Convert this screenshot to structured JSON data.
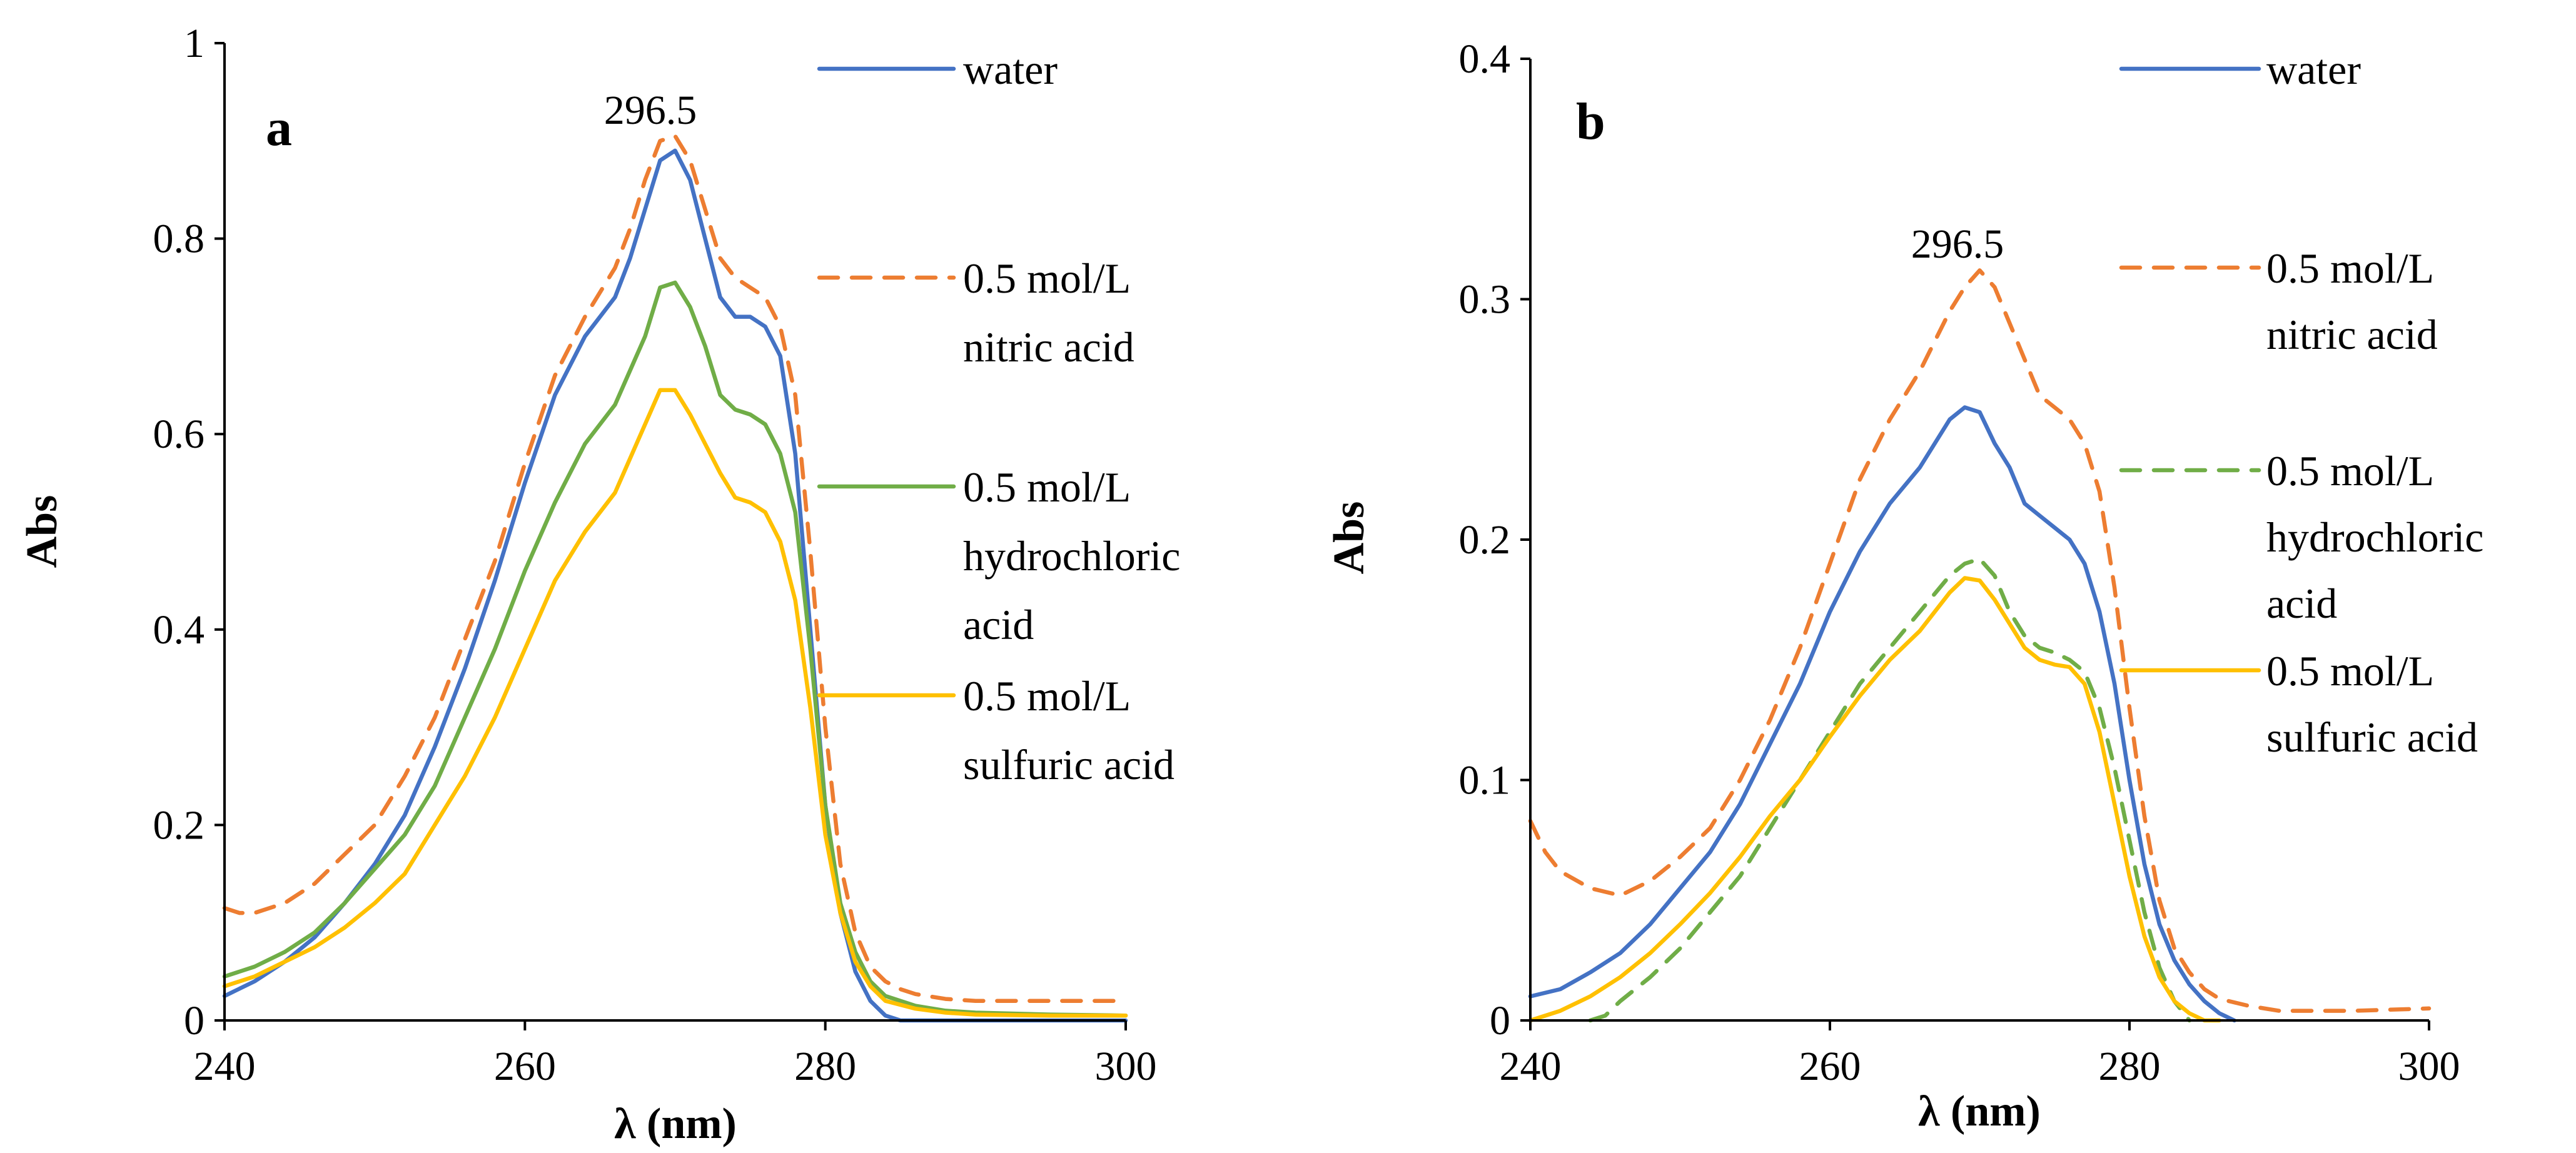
{
  "chart_data": [
    {
      "type": "line",
      "panel_label": "a",
      "title": "",
      "xlabel": "λ (nm)",
      "ylabel": "Abs",
      "xlim": [
        240,
        300
      ],
      "ylim": [
        0,
        1
      ],
      "x_ticks": [
        240,
        260,
        280,
        300
      ],
      "x_tick_labels": [
        "240",
        "260",
        "280",
        "300"
      ],
      "y_ticks": [
        0,
        0.2,
        0.4,
        0.6,
        0.8,
        1
      ],
      "y_tick_labels": [
        "0",
        "0.2",
        "0.4",
        "0.6",
        "0.8",
        "1"
      ],
      "grid": false,
      "legend_position": "right",
      "annotation": {
        "text": "296.5",
        "x": 269.5,
        "y": 0.905
      },
      "series": [
        {
          "name": "water",
          "legend": [
            "water"
          ],
          "color": "#4472C4",
          "dash": "solid",
          "x": [
            240,
            242,
            244,
            246,
            248,
            250,
            252,
            254,
            256,
            258,
            260,
            262,
            264,
            266,
            267,
            268,
            269,
            270,
            271,
            272,
            273,
            274,
            275,
            276,
            277,
            278,
            279,
            280,
            281,
            282,
            283,
            284,
            285,
            286,
            290,
            300
          ],
          "y": [
            0.025,
            0.04,
            0.06,
            0.085,
            0.12,
            0.16,
            0.21,
            0.28,
            0.36,
            0.45,
            0.55,
            0.64,
            0.7,
            0.74,
            0.78,
            0.83,
            0.88,
            0.89,
            0.86,
            0.8,
            0.74,
            0.72,
            0.72,
            0.71,
            0.68,
            0.58,
            0.4,
            0.22,
            0.11,
            0.05,
            0.02,
            0.005,
            0.0,
            0.0,
            0.0,
            0.0
          ]
        },
        {
          "name": "0.5 mol/L nitric acid",
          "legend": [
            "0.5 mol/L",
            "nitric acid"
          ],
          "color": "#ED7D31",
          "dash": "dashed",
          "x": [
            240,
            241,
            242,
            244,
            246,
            248,
            250,
            252,
            254,
            256,
            258,
            260,
            262,
            264,
            266,
            267,
            268,
            269,
            270,
            271,
            272,
            273,
            274,
            275,
            276,
            277,
            278,
            279,
            280,
            281,
            282,
            283,
            284,
            285,
            286,
            288,
            290,
            295,
            300
          ],
          "y": [
            0.115,
            0.11,
            0.11,
            0.12,
            0.14,
            0.17,
            0.2,
            0.25,
            0.31,
            0.39,
            0.47,
            0.57,
            0.66,
            0.72,
            0.77,
            0.81,
            0.86,
            0.9,
            0.905,
            0.88,
            0.83,
            0.78,
            0.76,
            0.75,
            0.74,
            0.71,
            0.64,
            0.48,
            0.3,
            0.16,
            0.09,
            0.055,
            0.04,
            0.032,
            0.027,
            0.022,
            0.02,
            0.02,
            0.02
          ]
        },
        {
          "name": "0.5 mol/L hydrochloric acid",
          "legend": [
            "0.5 mol/L",
            "hydrochloric",
            "acid"
          ],
          "color": "#70AD47",
          "dash": "solid",
          "x": [
            240,
            242,
            244,
            246,
            248,
            250,
            252,
            254,
            256,
            258,
            260,
            262,
            264,
            266,
            268,
            269,
            270,
            271,
            272,
            273,
            274,
            275,
            276,
            277,
            278,
            279,
            280,
            281,
            282,
            283,
            284,
            286,
            288,
            290,
            295,
            300
          ],
          "y": [
            0.045,
            0.055,
            0.07,
            0.09,
            0.12,
            0.155,
            0.19,
            0.24,
            0.31,
            0.38,
            0.46,
            0.53,
            0.59,
            0.63,
            0.7,
            0.75,
            0.755,
            0.73,
            0.69,
            0.64,
            0.625,
            0.62,
            0.61,
            0.58,
            0.52,
            0.38,
            0.22,
            0.12,
            0.07,
            0.04,
            0.025,
            0.015,
            0.01,
            0.008,
            0.006,
            0.005
          ]
        },
        {
          "name": "0.5 mol/L sulfuric acid",
          "legend": [
            "0.5 mol/L",
            "sulfuric acid"
          ],
          "color": "#FFC000",
          "dash": "solid",
          "x": [
            240,
            242,
            244,
            246,
            248,
            250,
            252,
            254,
            256,
            258,
            260,
            262,
            264,
            266,
            268,
            269,
            270,
            271,
            272,
            273,
            274,
            275,
            276,
            277,
            278,
            279,
            280,
            281,
            282,
            283,
            284,
            286,
            288,
            290,
            295,
            300
          ],
          "y": [
            0.035,
            0.045,
            0.06,
            0.075,
            0.095,
            0.12,
            0.15,
            0.2,
            0.25,
            0.31,
            0.38,
            0.45,
            0.5,
            0.54,
            0.61,
            0.645,
            0.645,
            0.62,
            0.59,
            0.56,
            0.535,
            0.53,
            0.52,
            0.49,
            0.43,
            0.32,
            0.19,
            0.11,
            0.06,
            0.035,
            0.02,
            0.012,
            0.008,
            0.006,
            0.005,
            0.005
          ]
        }
      ]
    },
    {
      "type": "line",
      "panel_label": "b",
      "title": "",
      "xlabel": "λ (nm)",
      "ylabel": "Abs",
      "xlim": [
        240,
        300
      ],
      "ylim": [
        0,
        0.4
      ],
      "x_ticks": [
        240,
        260,
        280,
        300
      ],
      "x_tick_labels": [
        "240",
        "260",
        "280",
        "300"
      ],
      "y_ticks": [
        0,
        0.1,
        0.2,
        0.3,
        0.4
      ],
      "y_tick_labels": [
        "0",
        "0.1",
        "0.2",
        "0.3",
        "0.4"
      ],
      "grid": false,
      "legend_position": "right",
      "annotation": {
        "text": "296.5",
        "x": 269.5,
        "y": 0.313
      },
      "series": [
        {
          "name": "water",
          "legend": [
            "water"
          ],
          "color": "#4472C4",
          "dash": "solid",
          "x": [
            240,
            242,
            244,
            246,
            248,
            250,
            252,
            254,
            256,
            258,
            260,
            262,
            264,
            266,
            267,
            268,
            269,
            270,
            271,
            272,
            273,
            274,
            275,
            276,
            277,
            278,
            279,
            280,
            281,
            282,
            283,
            284,
            285,
            286,
            287
          ],
          "y": [
            0.01,
            0.013,
            0.02,
            0.028,
            0.04,
            0.055,
            0.07,
            0.09,
            0.115,
            0.14,
            0.17,
            0.195,
            0.215,
            0.23,
            0.24,
            0.25,
            0.255,
            0.253,
            0.24,
            0.23,
            0.215,
            0.21,
            0.205,
            0.2,
            0.19,
            0.17,
            0.14,
            0.1,
            0.065,
            0.04,
            0.025,
            0.015,
            0.008,
            0.003,
            0.0
          ]
        },
        {
          "name": "0.5 mol/L nitric acid",
          "legend": [
            "0.5 mol/L",
            "nitric acid"
          ],
          "color": "#ED7D31",
          "dash": "dashed",
          "x": [
            240,
            241,
            242,
            244,
            246,
            248,
            250,
            252,
            254,
            256,
            258,
            260,
            262,
            264,
            266,
            268,
            269,
            270,
            271,
            272,
            273,
            274,
            275,
            276,
            277,
            278,
            279,
            280,
            281,
            282,
            283,
            284,
            285,
            286,
            288,
            290,
            295,
            300
          ],
          "y": [
            0.083,
            0.07,
            0.062,
            0.055,
            0.052,
            0.058,
            0.068,
            0.08,
            0.1,
            0.125,
            0.155,
            0.19,
            0.225,
            0.25,
            0.27,
            0.295,
            0.305,
            0.312,
            0.305,
            0.29,
            0.275,
            0.26,
            0.255,
            0.25,
            0.24,
            0.22,
            0.18,
            0.13,
            0.085,
            0.05,
            0.03,
            0.02,
            0.013,
            0.009,
            0.006,
            0.004,
            0.004,
            0.005
          ]
        },
        {
          "name": "0.5 mol/L hydrochloric acid",
          "legend": [
            "0.5 mol/L",
            "hydrochloric",
            "acid"
          ],
          "color": "#70AD47",
          "dash": "dashed",
          "x": [
            244,
            245,
            246,
            248,
            250,
            252,
            254,
            256,
            258,
            260,
            262,
            264,
            266,
            268,
            269,
            270,
            271,
            272,
            273,
            274,
            275,
            276,
            277,
            278,
            279,
            280,
            281,
            282,
            283,
            284
          ],
          "y": [
            0.0,
            0.002,
            0.008,
            0.018,
            0.03,
            0.045,
            0.06,
            0.08,
            0.1,
            0.12,
            0.14,
            0.155,
            0.17,
            0.185,
            0.19,
            0.192,
            0.185,
            0.17,
            0.16,
            0.155,
            0.153,
            0.15,
            0.145,
            0.13,
            0.105,
            0.075,
            0.045,
            0.022,
            0.008,
            0.0
          ]
        },
        {
          "name": "0.5 mol/L sulfuric acid",
          "legend": [
            "0.5 mol/L",
            "sulfuric acid"
          ],
          "color": "#FFC000",
          "dash": "solid",
          "x": [
            240,
            242,
            244,
            246,
            248,
            250,
            252,
            254,
            256,
            258,
            260,
            262,
            264,
            266,
            268,
            269,
            270,
            271,
            272,
            273,
            274,
            275,
            276,
            277,
            278,
            279,
            280,
            281,
            282,
            283,
            284,
            285,
            286
          ],
          "y": [
            0.0,
            0.004,
            0.01,
            0.018,
            0.028,
            0.04,
            0.053,
            0.068,
            0.085,
            0.1,
            0.118,
            0.135,
            0.15,
            0.162,
            0.178,
            0.184,
            0.183,
            0.175,
            0.165,
            0.155,
            0.15,
            0.148,
            0.147,
            0.14,
            0.12,
            0.09,
            0.06,
            0.035,
            0.018,
            0.008,
            0.003,
            0.0,
            0.0
          ]
        }
      ]
    }
  ]
}
